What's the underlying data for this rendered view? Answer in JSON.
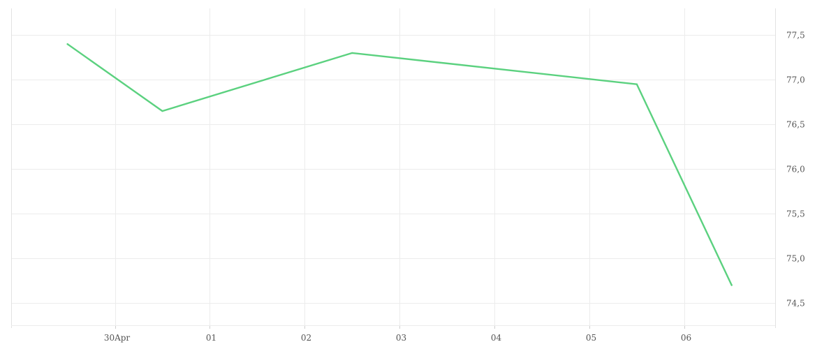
{
  "chart_data": {
    "type": "line",
    "title": "",
    "xlabel": "",
    "ylabel": "",
    "x_tick_labels": [
      "30Apr",
      "01",
      "02",
      "03",
      "04",
      "05",
      "06"
    ],
    "y_tick_labels": [
      "74,5",
      "75,0",
      "75,5",
      "76,0",
      "76,5",
      "77,0",
      "77,5"
    ],
    "y_ticks": [
      74.5,
      75.0,
      75.5,
      76.0,
      76.5,
      77.0,
      77.5
    ],
    "xlim": [
      "2024-04-28T21:45",
      "2024-05-06T23:00"
    ],
    "ylim": [
      74.25,
      77.8
    ],
    "grid": true,
    "y_axis_position": "right",
    "series": [
      {
        "color": "#5bd17f",
        "points": [
          {
            "x": "2024-04-29T12:00",
            "y": 77.4
          },
          {
            "x": "2024-04-30T12:00",
            "y": 76.65
          },
          {
            "x": "2024-05-02T12:00",
            "y": 77.3
          },
          {
            "x": "2024-05-05T12:00",
            "y": 76.95
          },
          {
            "x": "2024-05-06T12:00",
            "y": 74.7
          }
        ]
      }
    ]
  }
}
